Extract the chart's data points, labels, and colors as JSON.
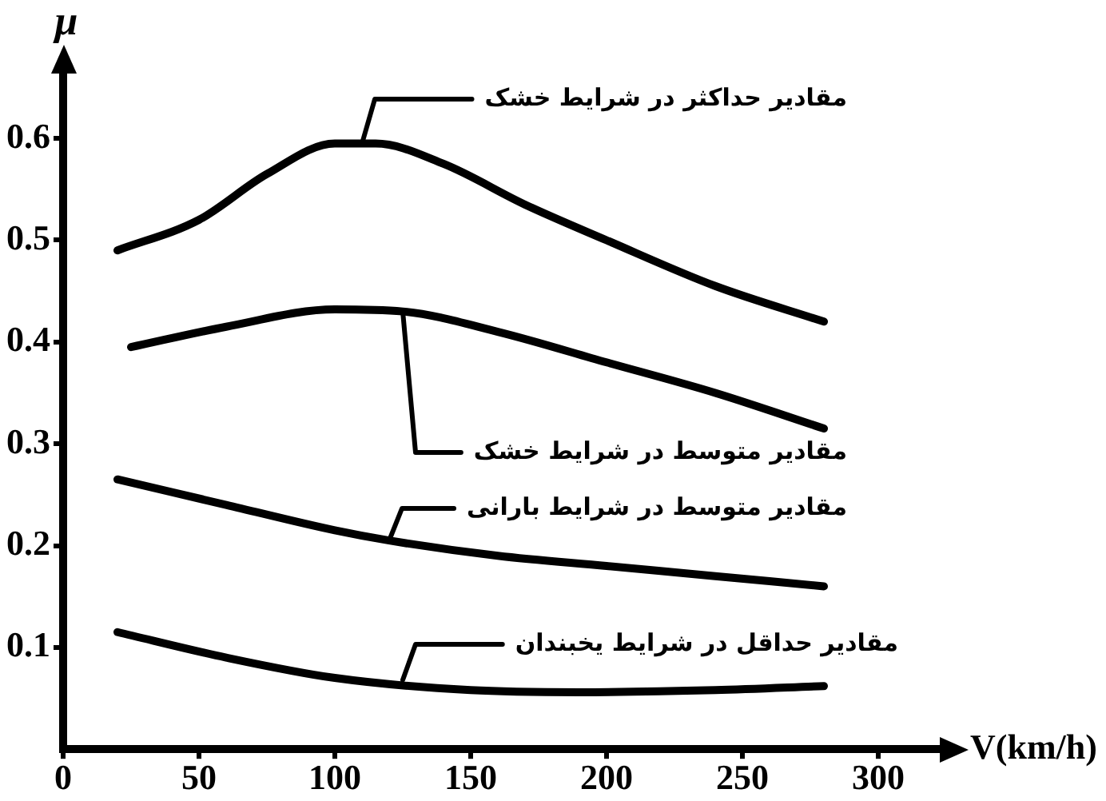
{
  "chart_data": {
    "type": "line",
    "xlabel": "V(km/h)",
    "ylabel": "μ",
    "xlim": [
      0,
      325
    ],
    "ylim": [
      0,
      0.67
    ],
    "xticks": [
      0,
      50,
      100,
      150,
      200,
      250,
      300
    ],
    "yticks": [
      0.1,
      0.2,
      0.3,
      0.4,
      0.5,
      0.6
    ],
    "grid": false,
    "legend": false,
    "marker": "none",
    "line_style": "solid",
    "series": [
      {
        "color": "#000000",
        "x": [
          20,
          50,
          75,
          100,
          115,
          140,
          170,
          200,
          240,
          280
        ],
        "values": [
          0.49,
          0.52,
          0.565,
          0.595,
          0.595,
          0.575,
          0.535,
          0.5,
          0.455,
          0.42
        ]
      },
      {
        "color": "#000000",
        "x": [
          25,
          60,
          100,
          125,
          160,
          200,
          240,
          280
        ],
        "values": [
          0.395,
          0.415,
          0.432,
          0.43,
          0.41,
          0.38,
          0.35,
          0.315
        ]
      },
      {
        "color": "#000000",
        "x": [
          20,
          60,
          100,
          120,
          160,
          200,
          240,
          280
        ],
        "values": [
          0.265,
          0.24,
          0.215,
          0.205,
          0.19,
          0.18,
          0.17,
          0.16
        ]
      },
      {
        "color": "#000000",
        "x": [
          20,
          60,
          100,
          150,
          190,
          240,
          280
        ],
        "values": [
          0.115,
          0.09,
          0.07,
          0.058,
          0.056,
          0.058,
          0.062
        ]
      }
    ],
    "annotations": [
      {
        "text": "مقادیر حداکثر در شرایط خشک",
        "x": 110,
        "y": 0.595
      },
      {
        "text": "مقادیر متوسط در شرایط خشک",
        "x": 125,
        "y": 0.43
      },
      {
        "text": "مقادیر متوسط در شرایط بارانی",
        "x": 120,
        "y": 0.205
      },
      {
        "text": "مقادیر حداقل در شرایط یخبندان",
        "x": 125,
        "y": 0.068
      }
    ]
  }
}
